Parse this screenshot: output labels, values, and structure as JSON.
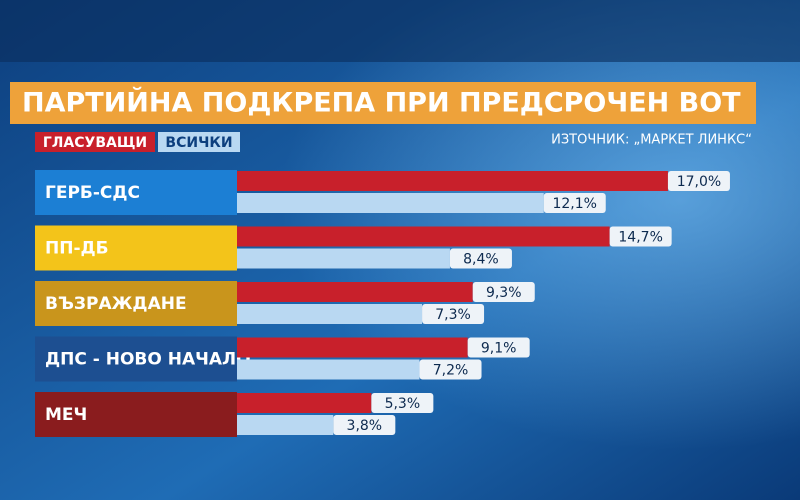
{
  "chart_data": {
    "type": "bar",
    "orientation": "horizontal",
    "title": "ПАРТИЙНА ПОДКРЕПА ПРИ ПРЕДСРОЧЕН ВОТ",
    "source": "ИЗТОЧНИК: „МАРКЕТ ЛИНКС“",
    "categories": [
      "ГЕРБ-СДС",
      "ПП-ДБ",
      "ВЪЗРАЖДАНЕ",
      "ДПС - НОВО НАЧАЛО",
      "МЕЧ"
    ],
    "category_colors": [
      "#1c7fd4",
      "#f3c41a",
      "#c9951c",
      "#1d4f91",
      "#8a1c1e"
    ],
    "series": [
      {
        "name": "ГЛАСУВАЩИ",
        "color": "#c8202b",
        "values": [
          17.0,
          14.7,
          9.3,
          9.1,
          5.3
        ],
        "value_labels": [
          "17,0%",
          "14,7%",
          "9,3%",
          "9,1%",
          "5,3%"
        ]
      },
      {
        "name": "ВСИЧКИ",
        "color": "#b9d8f2",
        "values": [
          12.1,
          8.4,
          7.3,
          7.2,
          3.8
        ],
        "value_labels": [
          "12,1%",
          "8,4%",
          "7,3%",
          "7,2%",
          "3,8%"
        ]
      }
    ]
  }
}
